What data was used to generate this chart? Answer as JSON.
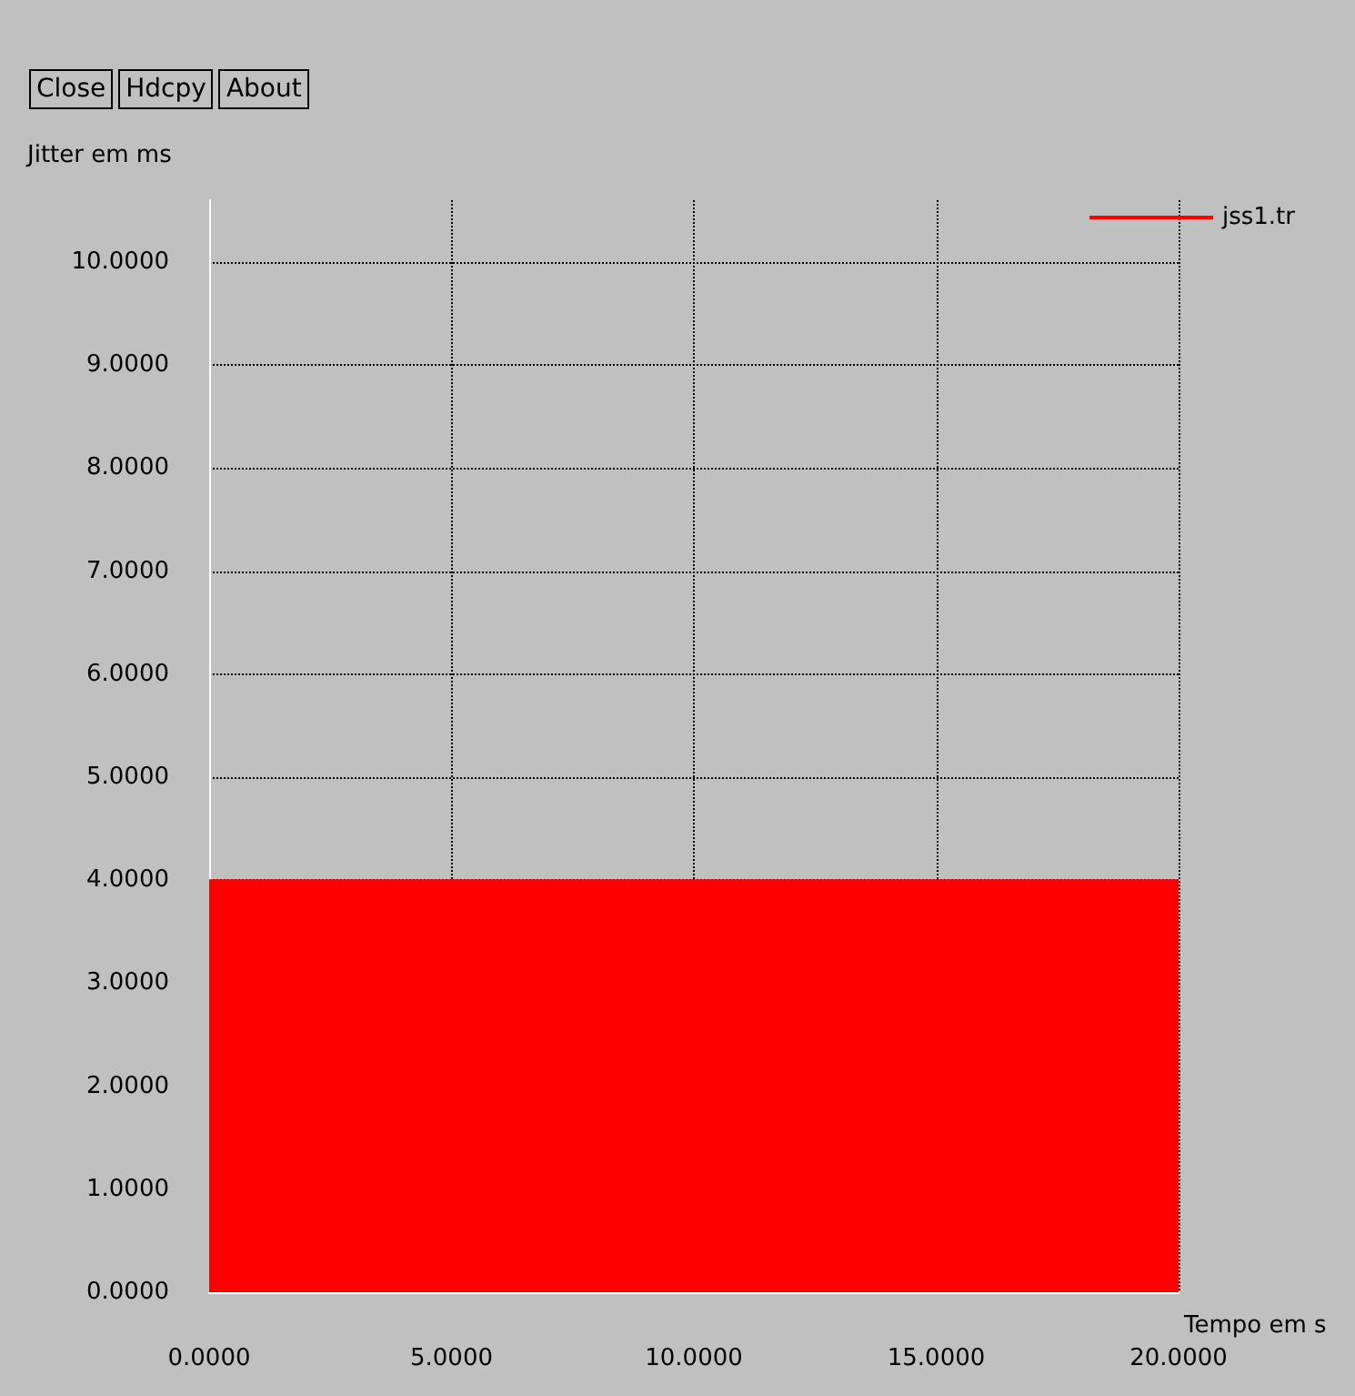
{
  "chart_data": {
    "type": "area",
    "xlabel": "Tempo em s",
    "ylabel": "Jitter em ms",
    "annotations": [
      "Close",
      "Hdcpy",
      "About"
    ],
    "x": [
      0,
      20
    ],
    "series": [
      {
        "name": "jss1.tr",
        "color": "#ff0000",
        "values": [
          4,
          4
        ]
      }
    ],
    "xlim": [
      0,
      20
    ],
    "ylim": [
      0,
      10.6
    ],
    "xticks": [
      {
        "value": 0,
        "label": "0.0000"
      },
      {
        "value": 5,
        "label": "5.0000"
      },
      {
        "value": 10,
        "label": "10.0000"
      },
      {
        "value": 15,
        "label": "15.0000"
      },
      {
        "value": 20,
        "label": "20.0000"
      }
    ],
    "yticks": [
      {
        "value": 0,
        "label": "0.0000"
      },
      {
        "value": 1,
        "label": "1.0000"
      },
      {
        "value": 2,
        "label": "2.0000"
      },
      {
        "value": 3,
        "label": "3.0000"
      },
      {
        "value": 4,
        "label": "4.0000"
      },
      {
        "value": 5,
        "label": "5.0000"
      },
      {
        "value": 6,
        "label": "6.0000"
      },
      {
        "value": 7,
        "label": "7.0000"
      },
      {
        "value": 8,
        "label": "8.0000"
      },
      {
        "value": 9,
        "label": "9.0000"
      },
      {
        "value": 10,
        "label": "10.0000"
      }
    ],
    "grid": true,
    "legend": "top right"
  }
}
